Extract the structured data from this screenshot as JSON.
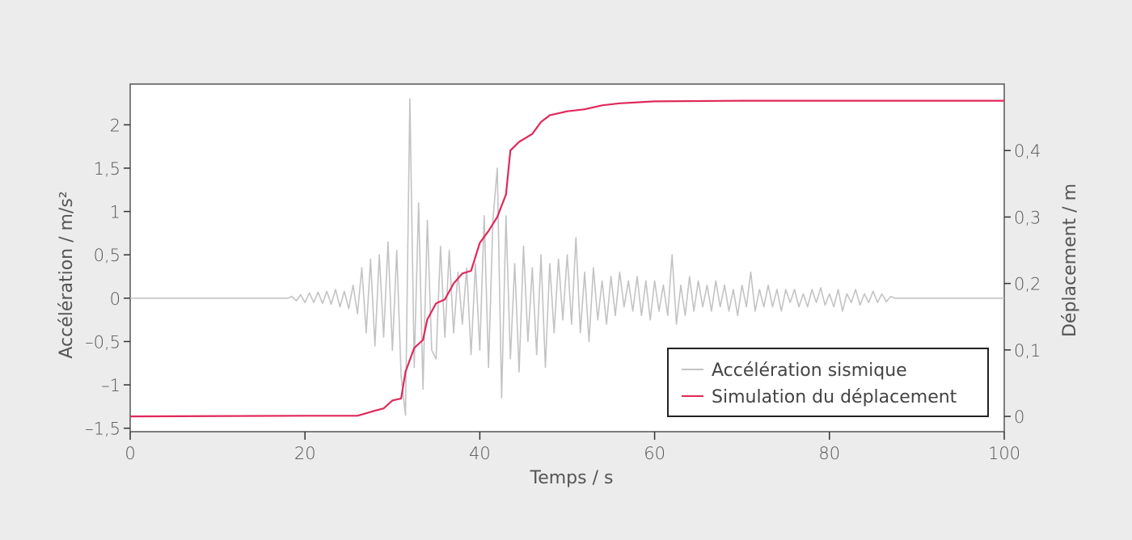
{
  "chart_data": {
    "type": "line",
    "title": "",
    "xlabel": "Temps / s",
    "ylabel_left": "Accélération / m/s²",
    "ylabel_right": "Déplacement / m",
    "xlim": [
      0,
      100
    ],
    "ylim_left": [
      -1.54,
      2.47
    ],
    "ylim_right": [
      -0.023,
      0.5
    ],
    "x_ticks": [
      0,
      20,
      40,
      60,
      80,
      100
    ],
    "x_tick_labels": [
      "0",
      "20",
      "40",
      "60",
      "80",
      "100"
    ],
    "y_left_ticks": [
      -1.5,
      -1,
      -0.5,
      0,
      0.5,
      1,
      1.5,
      2
    ],
    "y_left_tick_labels": [
      "–1,5",
      "–1",
      "–0,5",
      "0",
      "0,5",
      "1",
      "1,5",
      "2"
    ],
    "y_right_ticks": [
      0,
      0.1,
      0.2,
      0.3,
      0.4
    ],
    "y_right_tick_labels": [
      "0",
      "0,1",
      "0,2",
      "0,3",
      "0,4"
    ],
    "grid": false,
    "legend_position": "bottom-right",
    "colors": {
      "background": "#ececec",
      "plot_bg": "#ffffff",
      "acceleration": "#c3c3c3",
      "displacement": "#e0285a",
      "axis": "#333333"
    },
    "series": [
      {
        "name": "Accélération sismique",
        "axis": "left",
        "points": [
          [
            0,
            0
          ],
          [
            18,
            0
          ],
          [
            18.5,
            0.02
          ],
          [
            19,
            -0.03
          ],
          [
            19.5,
            0.04
          ],
          [
            20,
            -0.05
          ],
          [
            20.5,
            0.06
          ],
          [
            21,
            -0.05
          ],
          [
            21.5,
            0.07
          ],
          [
            22,
            -0.06
          ],
          [
            22.5,
            0.08
          ],
          [
            23,
            -0.07
          ],
          [
            23.5,
            0.1
          ],
          [
            24,
            -0.1
          ],
          [
            24.5,
            0.08
          ],
          [
            25,
            -0.12
          ],
          [
            25.5,
            0.15
          ],
          [
            26,
            -0.18
          ],
          [
            26.5,
            0.35
          ],
          [
            27,
            -0.4
          ],
          [
            27.5,
            0.45
          ],
          [
            28,
            -0.55
          ],
          [
            28.5,
            0.5
          ],
          [
            29,
            -0.45
          ],
          [
            29.5,
            0.65
          ],
          [
            30,
            -0.6
          ],
          [
            30.5,
            0.55
          ],
          [
            31,
            -0.9
          ],
          [
            31.5,
            -1.35
          ],
          [
            32,
            2.3
          ],
          [
            32.5,
            -0.8
          ],
          [
            33,
            1.1
          ],
          [
            33.5,
            -1.05
          ],
          [
            34,
            0.9
          ],
          [
            34.5,
            -0.6
          ],
          [
            35,
            -0.7
          ],
          [
            35.5,
            0.6
          ],
          [
            36,
            -0.45
          ],
          [
            36.5,
            0.55
          ],
          [
            37,
            -0.4
          ],
          [
            37.5,
            0.3
          ],
          [
            38,
            -0.3
          ],
          [
            38.5,
            0.35
          ],
          [
            39,
            -0.65
          ],
          [
            39.5,
            0.4
          ],
          [
            40,
            -0.6
          ],
          [
            40.5,
            0.95
          ],
          [
            41,
            -0.8
          ],
          [
            41.5,
            0.9
          ],
          [
            42,
            1.5
          ],
          [
            42.5,
            -1.15
          ],
          [
            43,
            0.95
          ],
          [
            43.5,
            -0.7
          ],
          [
            44,
            0.4
          ],
          [
            44.5,
            -0.85
          ],
          [
            45,
            0.6
          ],
          [
            45.5,
            -0.5
          ],
          [
            46,
            0.35
          ],
          [
            46.5,
            -0.65
          ],
          [
            47,
            0.5
          ],
          [
            47.5,
            -0.8
          ],
          [
            48,
            0.4
          ],
          [
            48.5,
            -0.4
          ],
          [
            49,
            0.45
          ],
          [
            49.5,
            -0.25
          ],
          [
            50,
            0.5
          ],
          [
            50.5,
            -0.3
          ],
          [
            51,
            0.7
          ],
          [
            51.5,
            -0.4
          ],
          [
            52,
            0.3
          ],
          [
            52.5,
            -0.5
          ],
          [
            53,
            0.35
          ],
          [
            53.5,
            -0.25
          ],
          [
            54,
            0.2
          ],
          [
            54.5,
            -0.3
          ],
          [
            55,
            0.25
          ],
          [
            55.5,
            -0.2
          ],
          [
            56,
            0.3
          ],
          [
            56.5,
            -0.1
          ],
          [
            57,
            0.2
          ],
          [
            57.5,
            -0.15
          ],
          [
            58,
            0.25
          ],
          [
            58.5,
            -0.2
          ],
          [
            59,
            0.2
          ],
          [
            59.5,
            -0.25
          ],
          [
            60,
            0.2
          ],
          [
            60.5,
            -0.15
          ],
          [
            61,
            0.15
          ],
          [
            61.5,
            -0.2
          ],
          [
            62,
            0.5
          ],
          [
            62.5,
            -0.3
          ],
          [
            63,
            0.15
          ],
          [
            63.5,
            -0.2
          ],
          [
            64,
            0.25
          ],
          [
            64.5,
            -0.15
          ],
          [
            65,
            0.2
          ],
          [
            65.5,
            -0.1
          ],
          [
            66,
            0.15
          ],
          [
            66.5,
            -0.15
          ],
          [
            67,
            0.2
          ],
          [
            67.5,
            -0.1
          ],
          [
            68,
            0.15
          ],
          [
            68.5,
            -0.15
          ],
          [
            69,
            0.1
          ],
          [
            69.5,
            -0.2
          ],
          [
            70,
            0.15
          ],
          [
            70.5,
            -0.1
          ],
          [
            71,
            0.3
          ],
          [
            71.5,
            -0.15
          ],
          [
            72,
            0.1
          ],
          [
            72.5,
            -0.1
          ],
          [
            73,
            0.15
          ],
          [
            73.5,
            -0.1
          ],
          [
            74,
            0.1
          ],
          [
            74.5,
            -0.15
          ],
          [
            75,
            0.1
          ],
          [
            75.5,
            -0.05
          ],
          [
            76,
            0.1
          ],
          [
            76.5,
            -0.1
          ],
          [
            77,
            0.05
          ],
          [
            77.5,
            -0.1
          ],
          [
            78,
            0.1
          ],
          [
            78.5,
            -0.05
          ],
          [
            79,
            0.12
          ],
          [
            79.5,
            -0.08
          ],
          [
            80,
            0.05
          ],
          [
            80.5,
            -0.1
          ],
          [
            81,
            0.1
          ],
          [
            81.5,
            -0.15
          ],
          [
            82,
            0.05
          ],
          [
            82.5,
            -0.05
          ],
          [
            83,
            0.1
          ],
          [
            83.5,
            -0.08
          ],
          [
            84,
            0.05
          ],
          [
            84.5,
            -0.05
          ],
          [
            85,
            0.08
          ],
          [
            85.5,
            -0.05
          ],
          [
            86,
            0.05
          ],
          [
            86.5,
            -0.04
          ],
          [
            87,
            0.02
          ],
          [
            87.5,
            0
          ],
          [
            100,
            0
          ]
        ]
      },
      {
        "name": "Simulation du déplacement",
        "axis": "right",
        "points": [
          [
            0,
            0
          ],
          [
            20,
            0.001
          ],
          [
            26,
            0.001
          ],
          [
            28,
            0.0085
          ],
          [
            29,
            0.012
          ],
          [
            30,
            0.024
          ],
          [
            31,
            0.027
          ],
          [
            31.5,
            0.067
          ],
          [
            32.5,
            0.103
          ],
          [
            33.5,
            0.115
          ],
          [
            34,
            0.146
          ],
          [
            35,
            0.17
          ],
          [
            36,
            0.176
          ],
          [
            37,
            0.2
          ],
          [
            38,
            0.215
          ],
          [
            39,
            0.219
          ],
          [
            40,
            0.261
          ],
          [
            41,
            0.279
          ],
          [
            42,
            0.3
          ],
          [
            43,
            0.334
          ],
          [
            43.5,
            0.4
          ],
          [
            44.5,
            0.413
          ],
          [
            46,
            0.425
          ],
          [
            47,
            0.443
          ],
          [
            48,
            0.453
          ],
          [
            50,
            0.459
          ],
          [
            52,
            0.462
          ],
          [
            54,
            0.468
          ],
          [
            56,
            0.471
          ],
          [
            60,
            0.474
          ],
          [
            70,
            0.475
          ],
          [
            100,
            0.475
          ]
        ]
      }
    ]
  }
}
